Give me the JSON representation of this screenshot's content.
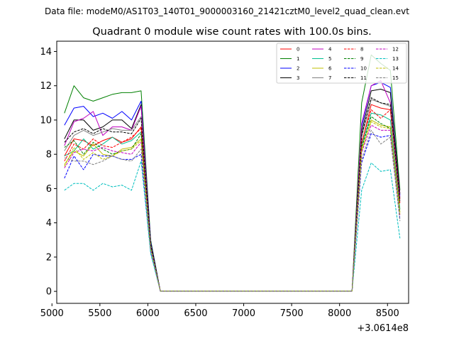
{
  "suptitle": "Data file: modeM0/AS1T03_140T01_9000003160_21421cztM0_level2_quad_clean.evt",
  "chart_data": {
    "type": "line",
    "title": "Quadrant 0 module wise count rates with 100.0s bins.",
    "xlabel": "",
    "ylabel": "",
    "offset_label": "+3.0614e8",
    "xlim": [
      5050,
      8720
    ],
    "ylim": [
      -0.7,
      14.6
    ],
    "xticks": [
      5000,
      5500,
      6000,
      6500,
      7000,
      7500,
      8000,
      8500
    ],
    "yticks": [
      0,
      2,
      4,
      6,
      8,
      10,
      12,
      14
    ],
    "grid": false,
    "legend": {
      "placement": "top-right",
      "columns": 4
    },
    "x": [
      5130,
      5230,
      5330,
      5430,
      5530,
      5630,
      5730,
      5830,
      5930,
      6030,
      6130,
      6230,
      6330,
      6430,
      6530,
      6630,
      6730,
      6830,
      6930,
      7030,
      7130,
      7230,
      7330,
      7430,
      7530,
      7630,
      7730,
      7830,
      7930,
      8030,
      8130,
      8230,
      8330,
      8430,
      8530,
      8630
    ],
    "series": [
      {
        "name": "0",
        "color": "#ff0000",
        "dash": "solid",
        "values": [
          7.9,
          8.9,
          8.8,
          8.5,
          8.8,
          9.0,
          8.7,
          8.9,
          9.6,
          2.7,
          0.02,
          0.02,
          0.02,
          0.02,
          0.02,
          0.02,
          0.02,
          0.02,
          0.02,
          0.02,
          0.02,
          0.02,
          0.02,
          0.02,
          0.02,
          0.02,
          0.02,
          0.02,
          0.02,
          0.02,
          0.02,
          8.6,
          10.9,
          10.7,
          10.6,
          5.4
        ]
      },
      {
        "name": "1",
        "color": "#008000",
        "dash": "solid",
        "values": [
          10.4,
          12.0,
          11.3,
          11.1,
          11.3,
          11.5,
          11.6,
          11.6,
          11.7,
          3.0,
          0.02,
          0.02,
          0.02,
          0.02,
          0.02,
          0.02,
          0.02,
          0.02,
          0.02,
          0.02,
          0.02,
          0.02,
          0.02,
          0.02,
          0.02,
          0.02,
          0.02,
          0.02,
          0.02,
          0.02,
          0.02,
          11.0,
          13.8,
          13.3,
          12.9,
          5.9
        ]
      },
      {
        "name": "2",
        "color": "#0000ff",
        "dash": "solid",
        "values": [
          9.7,
          10.7,
          10.8,
          10.2,
          10.4,
          10.1,
          10.5,
          10.0,
          11.1,
          2.9,
          0.02,
          0.02,
          0.02,
          0.02,
          0.02,
          0.02,
          0.02,
          0.02,
          0.02,
          0.02,
          0.02,
          0.02,
          0.02,
          0.02,
          0.02,
          0.02,
          0.02,
          0.02,
          0.02,
          0.02,
          0.02,
          9.6,
          12.0,
          12.2,
          11.9,
          5.6
        ]
      },
      {
        "name": "3",
        "color": "#000000",
        "dash": "solid",
        "values": [
          8.9,
          10.0,
          10.0,
          9.4,
          9.6,
          10.0,
          10.0,
          9.5,
          10.9,
          2.8,
          0.02,
          0.02,
          0.02,
          0.02,
          0.02,
          0.02,
          0.02,
          0.02,
          0.02,
          0.02,
          0.02,
          0.02,
          0.02,
          0.02,
          0.02,
          0.02,
          0.02,
          0.02,
          0.02,
          0.02,
          0.02,
          9.3,
          11.7,
          11.8,
          11.6,
          5.7
        ]
      },
      {
        "name": "4",
        "color": "#bf00bf",
        "dash": "solid",
        "values": [
          8.5,
          9.9,
          10.1,
          10.5,
          9.1,
          9.6,
          9.6,
          9.4,
          10.8,
          2.8,
          0.02,
          0.02,
          0.02,
          0.02,
          0.02,
          0.02,
          0.02,
          0.02,
          0.02,
          0.02,
          0.02,
          0.02,
          0.02,
          0.02,
          0.02,
          0.02,
          0.02,
          0.02,
          0.02,
          0.02,
          0.02,
          9.8,
          12.0,
          12.3,
          11.0,
          5.5
        ]
      },
      {
        "name": "5",
        "color": "#00bf8f",
        "dash": "solid",
        "values": [
          7.9,
          8.2,
          8.9,
          8.3,
          8.6,
          9.0,
          8.6,
          8.8,
          9.3,
          2.6,
          0.02,
          0.02,
          0.02,
          0.02,
          0.02,
          0.02,
          0.02,
          0.02,
          0.02,
          0.02,
          0.02,
          0.02,
          0.02,
          0.02,
          0.02,
          0.02,
          0.02,
          0.02,
          0.02,
          0.02,
          0.02,
          8.5,
          10.4,
          10.3,
          10.0,
          4.8
        ]
      },
      {
        "name": "6",
        "color": "#bfbf00",
        "dash": "solid",
        "values": [
          7.4,
          8.2,
          7.9,
          8.6,
          8.0,
          7.9,
          8.3,
          8.4,
          8.9,
          2.5,
          0.02,
          0.02,
          0.02,
          0.02,
          0.02,
          0.02,
          0.02,
          0.02,
          0.02,
          0.02,
          0.02,
          0.02,
          0.02,
          0.02,
          0.02,
          0.02,
          0.02,
          0.02,
          0.02,
          0.02,
          0.02,
          8.2,
          10.0,
          9.7,
          9.6,
          4.6
        ]
      },
      {
        "name": "7",
        "color": "#808080",
        "dash": "solid",
        "values": [
          8.2,
          9.1,
          9.4,
          9.1,
          9.3,
          9.5,
          9.4,
          9.4,
          10.2,
          2.7,
          0.02,
          0.02,
          0.02,
          0.02,
          0.02,
          0.02,
          0.02,
          0.02,
          0.02,
          0.02,
          0.02,
          0.02,
          0.02,
          0.02,
          0.02,
          0.02,
          0.02,
          0.02,
          0.02,
          0.02,
          0.02,
          9.0,
          11.2,
          11.0,
          10.8,
          5.2
        ]
      },
      {
        "name": "8",
        "color": "#ff0000",
        "dash": "dashed",
        "values": [
          7.6,
          8.6,
          8.3,
          8.9,
          8.5,
          8.4,
          8.7,
          9.0,
          9.5,
          2.6,
          0.02,
          0.02,
          0.02,
          0.02,
          0.02,
          0.02,
          0.02,
          0.02,
          0.02,
          0.02,
          0.02,
          0.02,
          0.02,
          0.02,
          0.02,
          0.02,
          0.02,
          0.02,
          0.02,
          0.02,
          0.02,
          8.7,
          10.6,
          10.1,
          10.6,
          5.1
        ]
      },
      {
        "name": "9",
        "color": "#008000",
        "dash": "dashed",
        "values": [
          8.4,
          8.8,
          8.0,
          8.7,
          8.3,
          8.0,
          8.2,
          8.3,
          9.2,
          2.6,
          0.02,
          0.02,
          0.02,
          0.02,
          0.02,
          0.02,
          0.02,
          0.02,
          0.02,
          0.02,
          0.02,
          0.02,
          0.02,
          0.02,
          0.02,
          0.02,
          0.02,
          0.02,
          0.02,
          0.02,
          0.02,
          8.4,
          10.2,
          9.8,
          9.5,
          4.6
        ]
      },
      {
        "name": "10",
        "color": "#0000ff",
        "dash": "dashed",
        "values": [
          6.6,
          7.9,
          7.1,
          8.0,
          7.9,
          7.9,
          7.7,
          7.7,
          8.0,
          2.3,
          0.02,
          0.02,
          0.02,
          0.02,
          0.02,
          0.02,
          0.02,
          0.02,
          0.02,
          0.02,
          0.02,
          0.02,
          0.02,
          0.02,
          0.02,
          0.02,
          0.02,
          0.02,
          0.02,
          0.02,
          0.02,
          7.5,
          9.2,
          9.0,
          9.1,
          4.2
        ]
      },
      {
        "name": "11",
        "color": "#000000",
        "dash": "dashed",
        "values": [
          8.7,
          9.3,
          9.5,
          9.2,
          9.5,
          9.3,
          9.3,
          9.2,
          10.1,
          2.8,
          0.02,
          0.02,
          0.02,
          0.02,
          0.02,
          0.02,
          0.02,
          0.02,
          0.02,
          0.02,
          0.02,
          0.02,
          0.02,
          0.02,
          0.02,
          0.02,
          0.02,
          0.02,
          0.02,
          0.02,
          0.02,
          9.1,
          11.3,
          11.0,
          10.9,
          5.3
        ]
      },
      {
        "name": "12",
        "color": "#bf00bf",
        "dash": "dashed",
        "values": [
          7.2,
          8.1,
          8.3,
          8.2,
          8.4,
          8.2,
          8.1,
          8.0,
          8.7,
          2.5,
          0.02,
          0.02,
          0.02,
          0.02,
          0.02,
          0.02,
          0.02,
          0.02,
          0.02,
          0.02,
          0.02,
          0.02,
          0.02,
          0.02,
          0.02,
          0.02,
          0.02,
          0.02,
          0.02,
          0.02,
          0.02,
          8.1,
          9.7,
          9.4,
          9.4,
          4.4
        ]
      },
      {
        "name": "13",
        "color": "#00bfbf",
        "dash": "dashed",
        "values": [
          5.9,
          6.3,
          6.3,
          5.9,
          6.3,
          6.1,
          6.2,
          5.9,
          7.6,
          2.2,
          0.02,
          0.02,
          0.02,
          0.02,
          0.02,
          0.02,
          0.02,
          0.02,
          0.02,
          0.02,
          0.02,
          0.02,
          0.02,
          0.02,
          0.02,
          0.02,
          0.02,
          0.02,
          0.02,
          0.02,
          0.02,
          5.9,
          7.5,
          7.0,
          7.1,
          3.1
        ]
      },
      {
        "name": "14",
        "color": "#bfbf00",
        "dash": "dashed",
        "values": [
          7.3,
          8.4,
          7.7,
          8.1,
          7.7,
          7.9,
          8.2,
          8.3,
          8.8,
          2.5,
          0.02,
          0.02,
          0.02,
          0.02,
          0.02,
          0.02,
          0.02,
          0.02,
          0.02,
          0.02,
          0.02,
          0.02,
          0.02,
          0.02,
          0.02,
          0.02,
          0.02,
          0.02,
          0.02,
          0.02,
          0.02,
          8.3,
          9.9,
          9.6,
          9.5,
          4.5
        ]
      },
      {
        "name": "15",
        "color": "#808080",
        "dash": "dashed",
        "values": [
          7.8,
          7.6,
          7.6,
          7.4,
          7.6,
          7.9,
          7.7,
          7.6,
          8.3,
          2.4,
          0.02,
          0.02,
          0.02,
          0.02,
          0.02,
          0.02,
          0.02,
          0.02,
          0.02,
          0.02,
          0.02,
          0.02,
          0.02,
          0.02,
          0.02,
          0.02,
          0.02,
          0.02,
          0.02,
          0.02,
          0.02,
          7.7,
          9.4,
          8.6,
          9.0,
          4.1
        ]
      }
    ]
  }
}
